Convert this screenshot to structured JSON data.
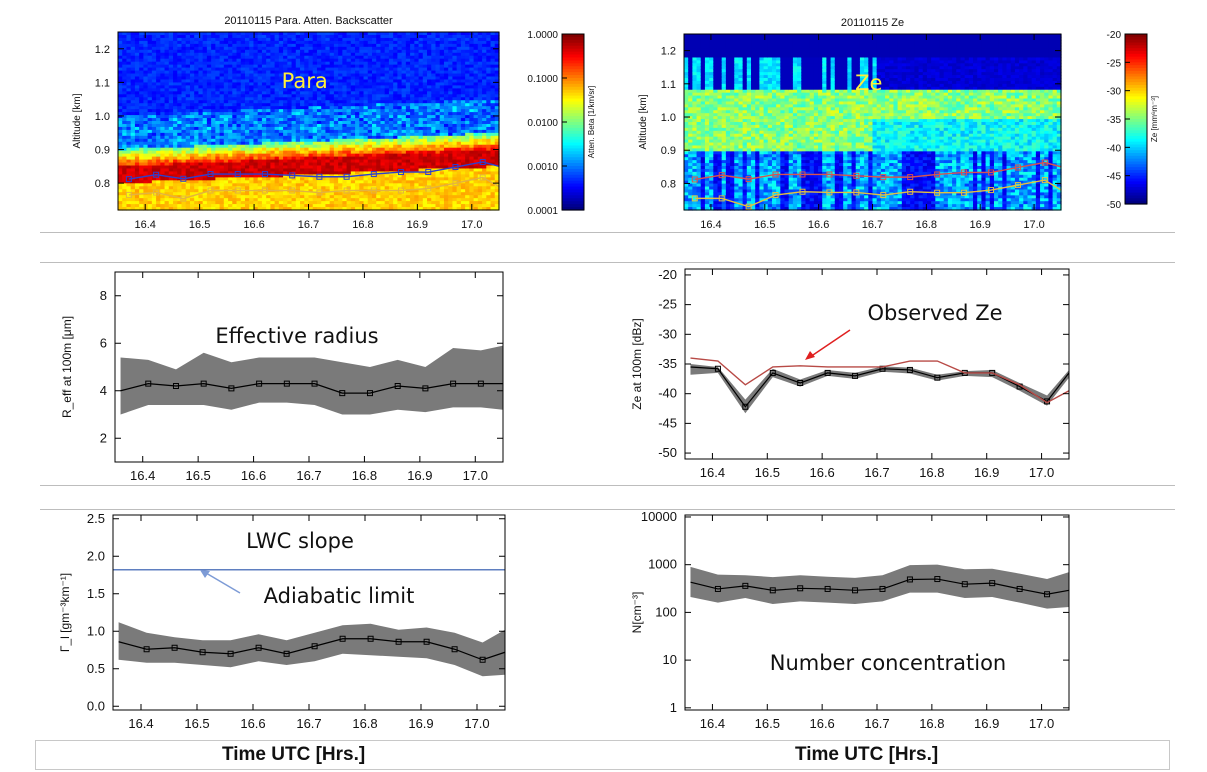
{
  "footer": {
    "left_xlabel": "Time UTC [Hrs.]",
    "right_xlabel": "Time UTC [Hrs.]"
  },
  "chart_data": [
    {
      "id": "para",
      "type": "heatmap",
      "title": "20110115 Para. Atten. Backscatter",
      "annotation": "Para",
      "xlabel": "",
      "ylabel": "Altitude [km]",
      "xlim": [
        16.35,
        17.05
      ],
      "ylim": [
        0.72,
        1.25
      ],
      "xticks": [
        "16.4",
        "16.5",
        "16.6",
        "16.7",
        "16.8",
        "16.9",
        "17.0"
      ],
      "yticks": [
        "0.8",
        "0.9",
        "1.0",
        "1.1",
        "1.2"
      ],
      "colorbar": {
        "label": "Atten. Beta [1/km/sr]",
        "scale": "log",
        "ticks": [
          "1.0000",
          "0.1000",
          "0.0100",
          "0.0010",
          "0.0001"
        ]
      },
      "series": [
        {
          "color": "#2b3fd1",
          "x": [
            16.37,
            16.42,
            16.47,
            16.52,
            16.57,
            16.62,
            16.67,
            16.72,
            16.77,
            16.82,
            16.87,
            16.92,
            16.97,
            17.02,
            17.05
          ],
          "y": [
            0.812,
            0.825,
            0.813,
            0.827,
            0.827,
            0.827,
            0.823,
            0.819,
            0.819,
            0.827,
            0.833,
            0.833,
            0.848,
            0.863,
            0.85
          ]
        },
        {
          "color": "#e3b340",
          "x": [
            16.37,
            16.42,
            16.47,
            16.52,
            16.57,
            16.62,
            16.67,
            16.72,
            16.77,
            16.82,
            16.87,
            16.92,
            16.97,
            17.02,
            17.05
          ],
          "y": [
            0.765,
            0.772,
            0.754,
            0.778,
            0.778,
            0.778,
            0.778,
            0.772,
            0.778,
            0.778,
            0.778,
            0.784,
            0.8,
            0.817,
            0.79
          ]
        }
      ]
    },
    {
      "id": "ze",
      "type": "heatmap",
      "title": "20110115 Ze",
      "annotation": "Ze",
      "xlabel": "",
      "ylabel": "Altitude [km]",
      "xlim": [
        16.35,
        17.05
      ],
      "ylim": [
        0.72,
        1.25
      ],
      "xticks": [
        "16.4",
        "16.5",
        "16.6",
        "16.7",
        "16.8",
        "16.9",
        "17.0"
      ],
      "yticks": [
        "0.8",
        "0.9",
        "1.0",
        "1.1",
        "1.2"
      ],
      "colorbar": {
        "label": "Ze [mm⁶m⁻³]",
        "scale": "linear",
        "ticks": [
          "-20",
          "-25",
          "-30",
          "-35",
          "-40",
          "-45",
          "-50"
        ]
      },
      "series": [
        {
          "color": "#d9534f",
          "x": [
            16.37,
            16.42,
            16.47,
            16.52,
            16.57,
            16.62,
            16.67,
            16.72,
            16.77,
            16.82,
            16.87,
            16.92,
            16.97,
            17.02,
            17.05
          ],
          "y": [
            0.812,
            0.825,
            0.813,
            0.827,
            0.827,
            0.827,
            0.823,
            0.819,
            0.819,
            0.827,
            0.833,
            0.833,
            0.848,
            0.863,
            0.85
          ]
        },
        {
          "color": "#e3c040",
          "x": [
            16.37,
            16.42,
            16.47,
            16.52,
            16.57,
            16.62,
            16.67,
            16.72,
            16.77,
            16.82,
            16.87,
            16.92,
            16.97,
            17.02,
            17.05
          ],
          "y": [
            0.755,
            0.755,
            0.73,
            0.765,
            0.775,
            0.773,
            0.773,
            0.765,
            0.775,
            0.772,
            0.772,
            0.78,
            0.795,
            0.81,
            0.78
          ]
        }
      ]
    },
    {
      "id": "reff",
      "type": "line",
      "annotation": "Effective radius",
      "xlabel": "",
      "ylabel": "R_eff at 100m [μm]",
      "xlim": [
        16.35,
        17.05
      ],
      "ylim": [
        1,
        9
      ],
      "xticks": [
        "16.4",
        "16.5",
        "16.6",
        "16.7",
        "16.8",
        "16.9",
        "17.0"
      ],
      "yticks": [
        "2",
        "4",
        "6",
        "8"
      ],
      "x": [
        16.36,
        16.41,
        16.46,
        16.51,
        16.56,
        16.61,
        16.66,
        16.71,
        16.76,
        16.81,
        16.86,
        16.91,
        16.96,
        17.01,
        17.05
      ],
      "values": [
        4.0,
        4.3,
        4.2,
        4.3,
        4.1,
        4.3,
        4.3,
        4.3,
        3.9,
        3.9,
        4.2,
        4.1,
        4.3,
        4.3,
        4.3
      ],
      "upper": [
        5.4,
        5.3,
        4.9,
        5.6,
        5.2,
        5.4,
        5.4,
        5.4,
        5.2,
        5.0,
        5.3,
        5.0,
        5.8,
        5.7,
        5.9
      ],
      "lower": [
        3.0,
        3.4,
        3.4,
        3.4,
        3.2,
        3.5,
        3.5,
        3.4,
        3.0,
        3.0,
        3.2,
        3.1,
        3.3,
        3.3,
        3.2
      ]
    },
    {
      "id": "ze100",
      "type": "line",
      "annotation": "Observed Ze",
      "xlabel": "",
      "ylabel": "Ze at 100m [dBz]",
      "xlim": [
        16.35,
        17.05
      ],
      "ylim": [
        -51,
        -19
      ],
      "xticks": [
        "16.4",
        "16.5",
        "16.6",
        "16.7",
        "16.8",
        "16.9",
        "17.0"
      ],
      "yticks": [
        "-20",
        "-25",
        "-30",
        "-35",
        "-40",
        "-45",
        "-50"
      ],
      "x": [
        16.36,
        16.41,
        16.46,
        16.51,
        16.56,
        16.61,
        16.66,
        16.71,
        16.76,
        16.81,
        16.86,
        16.91,
        16.96,
        17.01,
        17.05
      ],
      "values": [
        -35.5,
        -35.8,
        -42.2,
        -36.5,
        -38.2,
        -36.5,
        -37.0,
        -35.8,
        -36.0,
        -37.3,
        -36.5,
        -36.5,
        -38.8,
        -41.3,
        -36.5
      ],
      "upper": [
        -35.0,
        -35.5,
        -41.0,
        -35.8,
        -37.6,
        -36.0,
        -36.5,
        -35.4,
        -35.6,
        -36.8,
        -36.2,
        -36.0,
        -38.2,
        -40.3,
        -36.0
      ],
      "lower": [
        -36.8,
        -36.5,
        -43.3,
        -37.2,
        -38.8,
        -37.0,
        -37.5,
        -36.3,
        -36.6,
        -37.8,
        -37.0,
        -37.2,
        -39.5,
        -42.0,
        -37.3
      ],
      "observed": [
        -34.0,
        -34.5,
        -38.5,
        -35.5,
        -35.3,
        -35.5,
        -35.5,
        -35.5,
        -34.5,
        -34.5,
        -36.5,
        -36.5,
        -38.5,
        -41.5,
        -39.5
      ]
    },
    {
      "id": "lwc",
      "type": "line",
      "annotation": "LWC slope",
      "annotation2": "Adiabatic limit",
      "xlabel": "",
      "ylabel": "Γ_l [gm⁻³km⁻¹]",
      "xlim": [
        16.35,
        17.05
      ],
      "ylim": [
        -0.05,
        2.55
      ],
      "xticks": [
        "16.4",
        "16.5",
        "16.6",
        "16.7",
        "16.8",
        "16.9",
        "17.0"
      ],
      "yticks": [
        "0.0",
        "0.5",
        "1.0",
        "1.5",
        "2.0",
        "2.5"
      ],
      "x": [
        16.36,
        16.41,
        16.46,
        16.51,
        16.56,
        16.61,
        16.66,
        16.71,
        16.76,
        16.81,
        16.86,
        16.91,
        16.96,
        17.01,
        17.05
      ],
      "values": [
        0.86,
        0.76,
        0.78,
        0.72,
        0.7,
        0.78,
        0.7,
        0.8,
        0.9,
        0.9,
        0.86,
        0.86,
        0.76,
        0.62,
        0.72
      ],
      "upper": [
        1.12,
        0.98,
        0.92,
        0.88,
        0.88,
        0.96,
        0.88,
        0.98,
        1.08,
        1.1,
        1.02,
        1.05,
        0.98,
        0.85,
        1.02
      ],
      "lower": [
        0.62,
        0.58,
        0.58,
        0.55,
        0.52,
        0.6,
        0.55,
        0.6,
        0.7,
        0.68,
        0.66,
        0.64,
        0.55,
        0.4,
        0.42
      ],
      "adiabatic_limit": 1.82
    },
    {
      "id": "nc",
      "type": "line",
      "annotation": "Number concentration",
      "xlabel": "",
      "ylabel": "N[cm⁻³]",
      "yscale": "log",
      "xlim": [
        16.35,
        17.05
      ],
      "ylim": [
        0.9,
        11000
      ],
      "xticks": [
        "16.4",
        "16.5",
        "16.6",
        "16.7",
        "16.8",
        "16.9",
        "17.0"
      ],
      "yticks": [
        "1",
        "10",
        "100",
        "1000",
        "10000"
      ],
      "x": [
        16.36,
        16.41,
        16.46,
        16.51,
        16.56,
        16.61,
        16.66,
        16.71,
        16.76,
        16.81,
        16.86,
        16.91,
        16.96,
        17.01,
        17.05
      ],
      "values": [
        430,
        310,
        360,
        290,
        320,
        310,
        290,
        310,
        490,
        500,
        390,
        410,
        310,
        240,
        290
      ],
      "upper": [
        900,
        620,
        600,
        550,
        600,
        560,
        530,
        600,
        980,
        1000,
        800,
        820,
        650,
        500,
        700
      ],
      "lower": [
        210,
        160,
        200,
        150,
        170,
        160,
        150,
        170,
        260,
        260,
        200,
        210,
        160,
        120,
        130
      ]
    }
  ]
}
